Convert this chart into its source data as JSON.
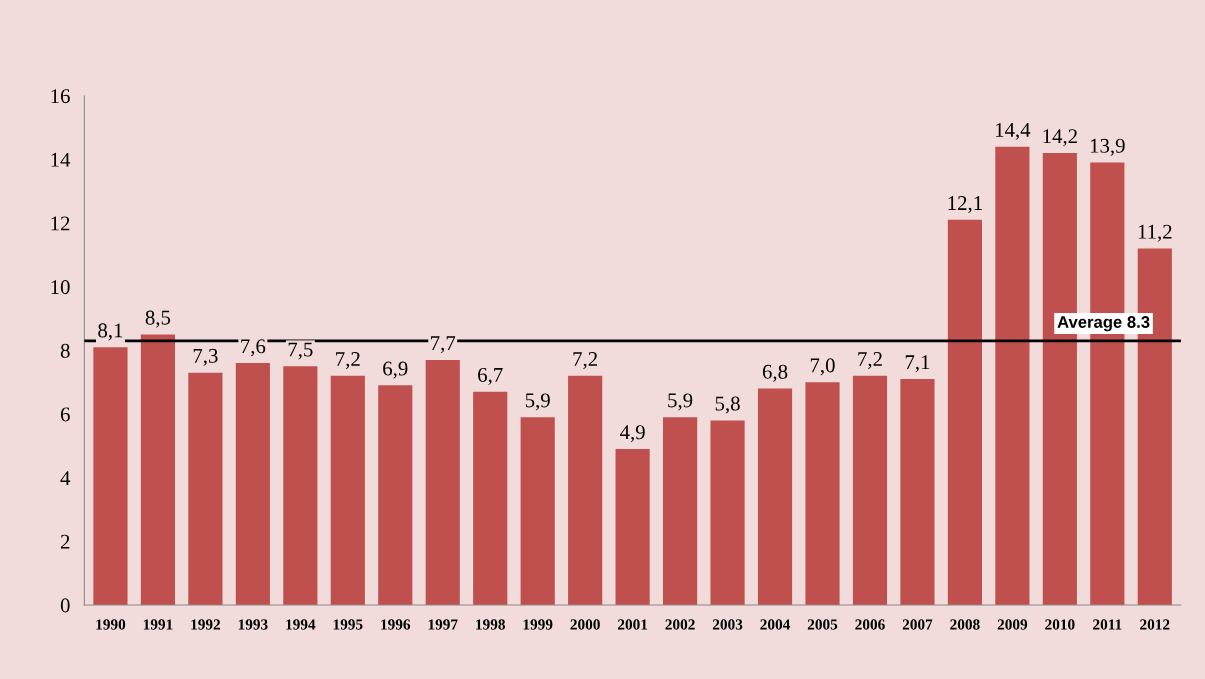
{
  "chart_data": {
    "type": "bar",
    "categories": [
      "1990",
      "1991",
      "1992",
      "1993",
      "1994",
      "1995",
      "1996",
      "1997",
      "1998",
      "1999",
      "2000",
      "2001",
      "2002",
      "2003",
      "2004",
      "2005",
      "2006",
      "2007",
      "2008",
      "2009",
      "2010",
      "2011",
      "2012"
    ],
    "values": [
      8.1,
      8.5,
      7.3,
      7.6,
      7.5,
      7.2,
      6.9,
      7.7,
      6.7,
      5.9,
      7.2,
      4.9,
      5.9,
      5.8,
      6.8,
      7.0,
      7.2,
      7.1,
      12.1,
      14.4,
      14.2,
      13.9,
      11.2
    ],
    "value_labels": [
      "8,1",
      "8,5",
      "7,3",
      "7,6",
      "7,5",
      "7,2",
      "6,9",
      "7,7",
      "6,7",
      "5,9",
      "7,2",
      "4,9",
      "5,9",
      "5,8",
      "6,8",
      "7,0",
      "7,2",
      "7,1",
      "12,1",
      "14,4",
      "14,2",
      "13,9",
      "11,2"
    ],
    "color": "#c0504d",
    "ylim": [
      0,
      16
    ],
    "yticks": [
      0,
      2,
      4,
      6,
      8,
      10,
      12,
      14,
      16
    ],
    "grid": false,
    "ref_lines": [
      {
        "axis": "y",
        "value": 8.3,
        "label": "Average 8.3",
        "color": "#000000"
      }
    ]
  }
}
